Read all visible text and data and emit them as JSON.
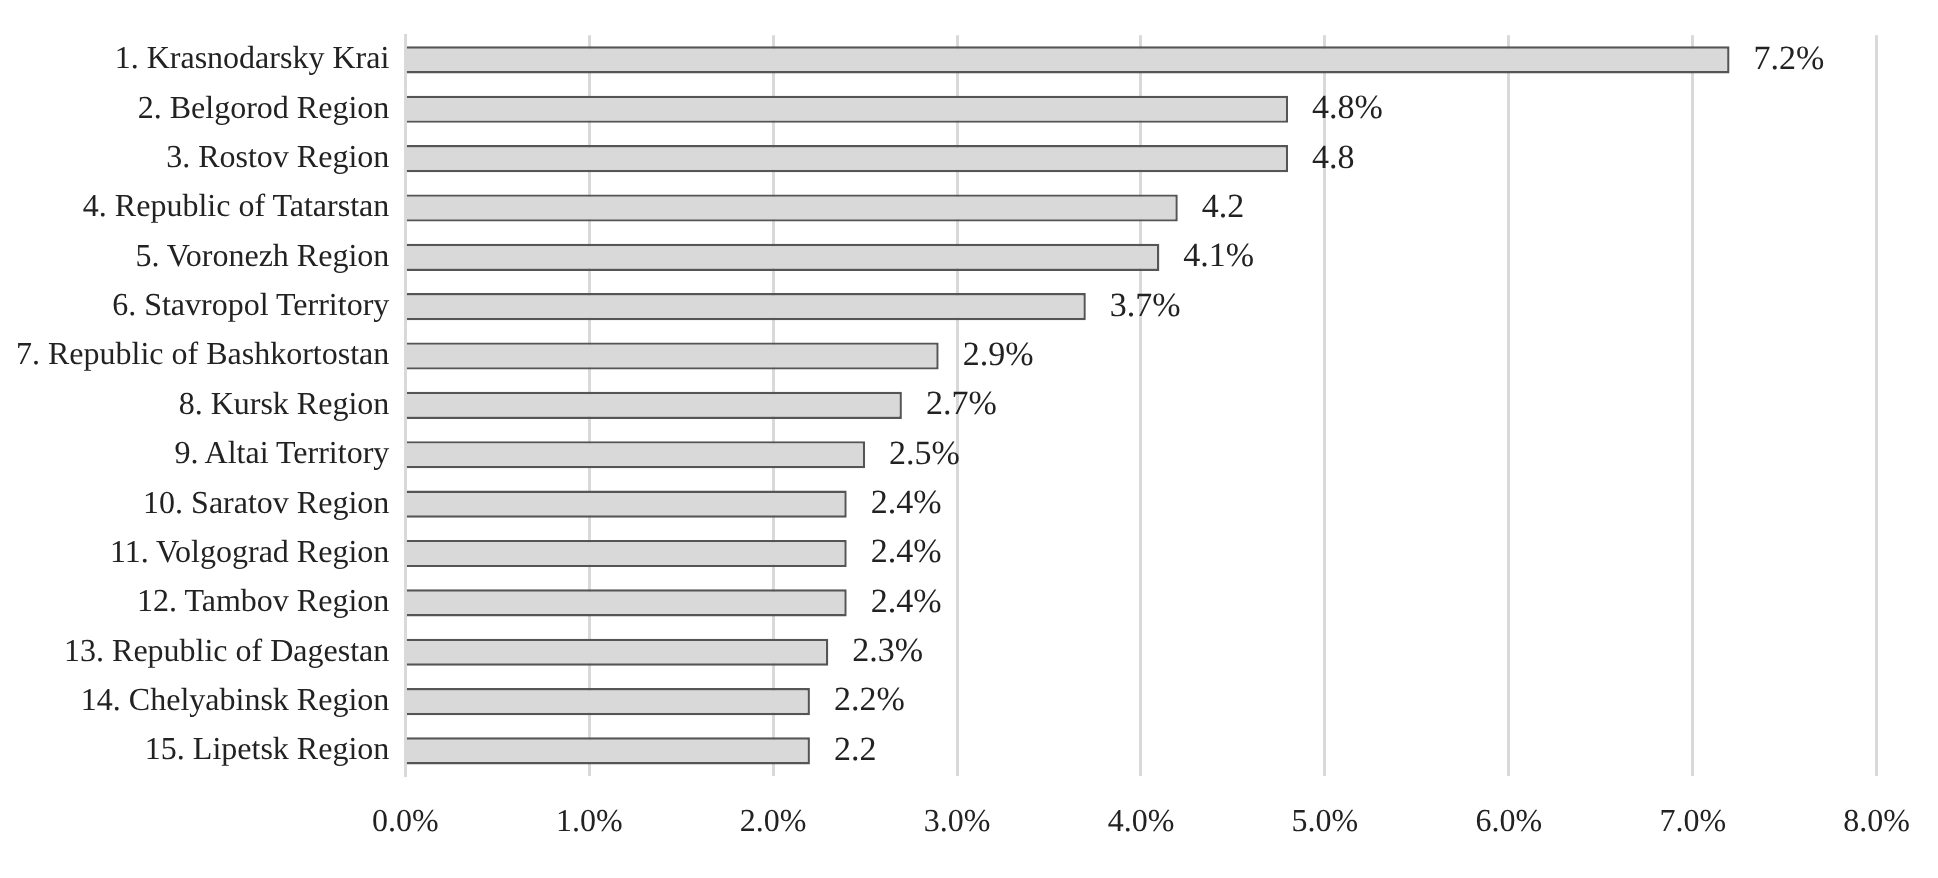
{
  "chart_data": {
    "type": "bar",
    "orientation": "horizontal",
    "categories": [
      "1. Krasnodarsky Krai",
      "2. Belgorod Region",
      "3. Rostov Region",
      "4. Republic of Tatarstan",
      "5. Voronezh Region",
      "6. Stavropol Territory",
      "7. Republic of Bashkortostan",
      "8. Kursk Region",
      "9. Altai Territory",
      "10. Saratov Region",
      "11. Volgograd Region",
      "12. Tambov Region",
      "13. Republic of Dagestan",
      "14. Chelyabinsk Region",
      "15. Lipetsk Region"
    ],
    "values": [
      7.2,
      4.8,
      4.8,
      4.2,
      4.1,
      3.7,
      2.9,
      2.7,
      2.5,
      2.4,
      2.4,
      2.4,
      2.3,
      2.2,
      2.2
    ],
    "value_labels": [
      "7.2%",
      "4.8%",
      "4.8",
      "4.2",
      "4.1%",
      "3.7%",
      "2.9%",
      "2.7%",
      "2.5%",
      "2.4%",
      "2.4%",
      "2.4%",
      "2.3%",
      "2.2%",
      "2.2"
    ],
    "color": "#d9d9d9",
    "xlim": [
      0,
      8
    ],
    "xticks": [
      {
        "value": 0,
        "label": "0.0%"
      },
      {
        "value": 1,
        "label": "1.0%"
      },
      {
        "value": 2,
        "label": "2.0%"
      },
      {
        "value": 3,
        "label": "3.0%"
      },
      {
        "value": 4,
        "label": "4.0%"
      },
      {
        "value": 5,
        "label": "5.0%"
      },
      {
        "value": 6,
        "label": "6.0%"
      },
      {
        "value": 7,
        "label": "7.0%"
      },
      {
        "value": 8,
        "label": "8.0%"
      }
    ],
    "grid": "x",
    "legend": false
  }
}
